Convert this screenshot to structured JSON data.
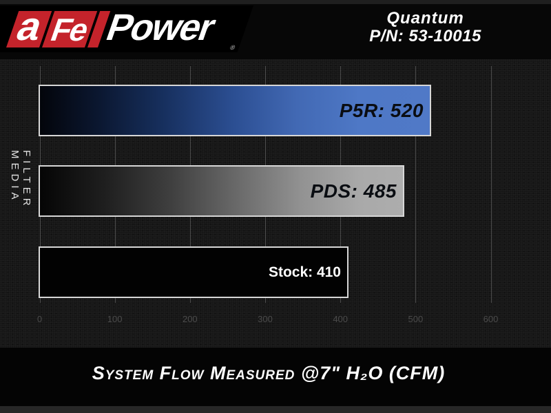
{
  "header": {
    "logo": {
      "letter_a": "a",
      "letters_fe": "Fe",
      "word_power": "Power",
      "registered_mark": "®"
    },
    "product_line": "Quantum",
    "part_number": "P/N: 53-10015"
  },
  "chart_data": {
    "type": "bar",
    "orientation": "horizontal",
    "title": "System Flow Measured @7\" H₂O (CFM)",
    "axis_label_vertical": "FILTER MEDIA",
    "categories": [
      "P5R",
      "PDS",
      "Stock"
    ],
    "values": [
      520,
      485,
      410
    ],
    "bar_labels": [
      "P5R: 520",
      "PDS: 485",
      "Stock: 410"
    ],
    "x_ticks": [
      "0",
      "100",
      "200",
      "300",
      "400",
      "500",
      "600"
    ],
    "xlim": [
      0,
      650
    ],
    "grid": true,
    "legend": "none",
    "bar_styles": [
      "blue-gradient",
      "silver-gradient",
      "black-outline"
    ],
    "colors": {
      "brand_red": "#c4232b",
      "blue_bar_end": "#5079c7",
      "silver_bar_end": "#adadad",
      "stock_bar_fill": "#020202",
      "bar_border": "#d7d7d7",
      "bar_label_dark": "#0a0d12",
      "bar_label_light": "#ffffff",
      "tick_label": "#4b4b4b"
    }
  }
}
